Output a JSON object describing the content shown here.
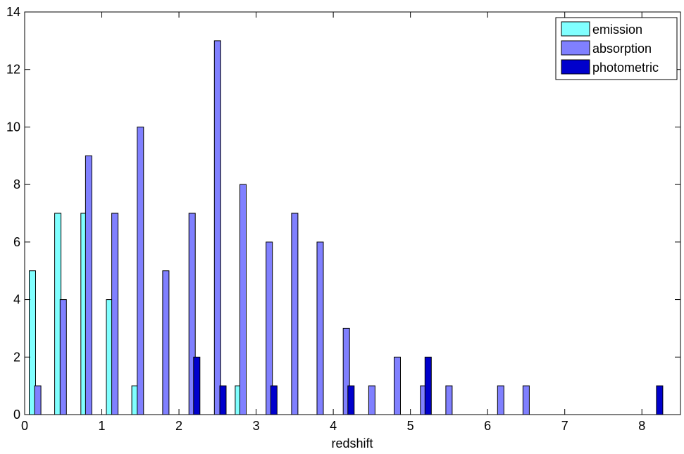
{
  "chart_data": {
    "type": "bar",
    "xlabel": "redshift",
    "ylabel": "",
    "xlim": [
      0,
      8.5
    ],
    "ylim": [
      0,
      14
    ],
    "xticks": [
      "0",
      "1",
      "2",
      "3",
      "4",
      "5",
      "6",
      "7",
      "8"
    ],
    "yticks": [
      "0",
      "2",
      "4",
      "6",
      "8",
      "10",
      "12",
      "14"
    ],
    "legend_position": "top-right",
    "bin_width": 0.333,
    "series": [
      {
        "name": "emission",
        "color": "#80ffff",
        "points": [
          {
            "x": 0.1,
            "y": 5
          },
          {
            "x": 0.43,
            "y": 7
          },
          {
            "x": 0.77,
            "y": 7
          },
          {
            "x": 1.1,
            "y": 4
          },
          {
            "x": 1.43,
            "y": 1
          },
          {
            "x": 2.77,
            "y": 1
          }
        ]
      },
      {
        "name": "absorption",
        "color": "#8080ff",
        "points": [
          {
            "x": 0.17,
            "y": 1
          },
          {
            "x": 0.5,
            "y": 4
          },
          {
            "x": 0.83,
            "y": 9
          },
          {
            "x": 1.17,
            "y": 7
          },
          {
            "x": 1.5,
            "y": 10
          },
          {
            "x": 1.83,
            "y": 5
          },
          {
            "x": 2.17,
            "y": 7
          },
          {
            "x": 2.5,
            "y": 13
          },
          {
            "x": 2.83,
            "y": 8
          },
          {
            "x": 3.17,
            "y": 6
          },
          {
            "x": 3.5,
            "y": 7
          },
          {
            "x": 3.83,
            "y": 6
          },
          {
            "x": 4.17,
            "y": 3
          },
          {
            "x": 4.5,
            "y": 1
          },
          {
            "x": 4.83,
            "y": 2
          },
          {
            "x": 5.17,
            "y": 1
          },
          {
            "x": 5.5,
            "y": 1
          },
          {
            "x": 6.17,
            "y": 1
          },
          {
            "x": 6.5,
            "y": 1
          }
        ]
      },
      {
        "name": "photometric",
        "color": "#0000cc",
        "points": [
          {
            "x": 2.23,
            "y": 2
          },
          {
            "x": 2.57,
            "y": 1
          },
          {
            "x": 3.23,
            "y": 1
          },
          {
            "x": 4.23,
            "y": 1
          },
          {
            "x": 5.23,
            "y": 2
          },
          {
            "x": 8.23,
            "y": 1
          }
        ]
      }
    ]
  }
}
